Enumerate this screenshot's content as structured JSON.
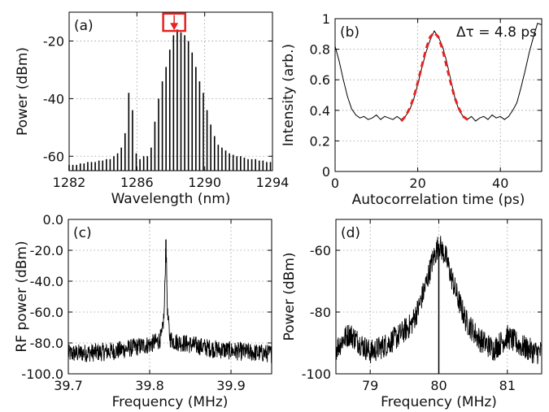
{
  "chart_data": [
    {
      "id": "a",
      "type": "line",
      "panel_label": "(a)",
      "xlabel": "Wavelength (nm)",
      "ylabel": "Power (dBm)",
      "xlim": [
        1282,
        1294
      ],
      "ylim": [
        -65,
        -10
      ],
      "xticks": [
        1282,
        1286,
        1290,
        1294
      ],
      "yticks": [
        -60,
        -40,
        -20
      ],
      "grid": true,
      "series": [
        {
          "style": "comb",
          "color": "#000000",
          "floor": -65,
          "x": [
            1282.0,
            1282.22,
            1282.44,
            1282.66,
            1282.88,
            1283.1,
            1283.32,
            1283.54,
            1283.76,
            1283.98,
            1284.2,
            1284.42,
            1284.64,
            1284.86,
            1285.08,
            1285.3,
            1285.52,
            1285.74,
            1285.96,
            1286.18,
            1286.4,
            1286.62,
            1286.84,
            1287.06,
            1287.28,
            1287.5,
            1287.72,
            1287.94,
            1288.16,
            1288.38,
            1288.6,
            1288.82,
            1289.04,
            1289.26,
            1289.48,
            1289.7,
            1289.92,
            1290.14,
            1290.36,
            1290.58,
            1290.8,
            1291.02,
            1291.24,
            1291.46,
            1291.68,
            1291.9,
            1292.12,
            1292.34,
            1292.56,
            1292.78,
            1293.0,
            1293.22,
            1293.44,
            1293.66,
            1293.88
          ],
          "y": [
            -63,
            -63,
            -63,
            -62.5,
            -62.5,
            -62,
            -62,
            -62,
            -61.5,
            -61.5,
            -61,
            -61,
            -60,
            -59,
            -57,
            -52,
            -38,
            -44,
            -59,
            -61,
            -60,
            -60,
            -57,
            -48,
            -40,
            -34,
            -29,
            -23,
            -18,
            -16,
            -17,
            -18,
            -20,
            -24,
            -29,
            -34,
            -38,
            -44,
            -49,
            -53,
            -56,
            -57,
            -58,
            -59,
            -59.5,
            -60,
            -60,
            -60.5,
            -61,
            -61,
            -61,
            -61.5,
            -61.5,
            -62,
            -62
          ]
        }
      ],
      "annotations": [
        {
          "type": "box_with_arrow",
          "color": "#e52222",
          "x_range": [
            1287.55,
            1288.85
          ],
          "y_range": [
            -16.5,
            -10.5
          ],
          "arrow_from": [
            1288.2,
            -11
          ],
          "arrow_to": [
            1288.2,
            -16
          ]
        }
      ]
    },
    {
      "id": "b",
      "type": "line",
      "panel_label": "(b)",
      "xlabel": "Autocorrelation time (ps)",
      "ylabel": "Intensity (arb.)",
      "xlim": [
        0,
        50
      ],
      "ylim": [
        0,
        1
      ],
      "xticks": [
        0,
        20,
        40
      ],
      "yticks": [
        0,
        0.2,
        0.4,
        0.6,
        0.8,
        1
      ],
      "grid": true,
      "annotation_text": "Δτ = 4.8 ps",
      "series": [
        {
          "style": "line",
          "color": "#000000",
          "x": [
            0,
            1,
            2,
            3,
            4,
            5,
            6,
            7,
            8,
            9,
            10,
            11,
            12,
            13,
            14,
            15,
            16,
            17,
            18,
            19,
            20,
            21,
            22,
            23,
            24,
            25,
            26,
            27,
            28,
            29,
            30,
            31,
            32,
            33,
            34,
            35,
            36,
            37,
            38,
            39,
            40,
            41,
            42,
            43,
            44,
            45,
            46,
            47,
            48,
            49,
            50
          ],
          "y": [
            0.82,
            0.72,
            0.6,
            0.49,
            0.41,
            0.37,
            0.35,
            0.36,
            0.34,
            0.35,
            0.37,
            0.34,
            0.36,
            0.35,
            0.34,
            0.36,
            0.34,
            0.36,
            0.4,
            0.47,
            0.57,
            0.68,
            0.78,
            0.86,
            0.92,
            0.88,
            0.82,
            0.72,
            0.6,
            0.48,
            0.4,
            0.36,
            0.34,
            0.36,
            0.33,
            0.35,
            0.36,
            0.34,
            0.37,
            0.35,
            0.36,
            0.34,
            0.36,
            0.4,
            0.45,
            0.55,
            0.66,
            0.78,
            0.88,
            0.97,
            0.96
          ]
        },
        {
          "style": "dashed",
          "color": "#e52222",
          "x": [
            16,
            17,
            18,
            19,
            20,
            21,
            22,
            23,
            24,
            25,
            26,
            27,
            28,
            29,
            30,
            31,
            32,
            33
          ],
          "y": [
            0.33,
            0.36,
            0.41,
            0.48,
            0.58,
            0.69,
            0.8,
            0.88,
            0.91,
            0.88,
            0.8,
            0.69,
            0.58,
            0.48,
            0.41,
            0.36,
            0.34,
            0.33
          ]
        }
      ]
    },
    {
      "id": "c",
      "type": "line",
      "panel_label": "(c)",
      "xlabel": "Frequency (MHz)",
      "ylabel": "RF power (dBm)",
      "xlim": [
        39.7,
        39.95
      ],
      "ylim": [
        -100,
        0
      ],
      "xticks": [
        39.7,
        39.8,
        39.9
      ],
      "yticks": [
        -100,
        -80,
        -60,
        -40,
        -20,
        0
      ],
      "grid": true,
      "series": [
        {
          "style": "noise",
          "color": "#000000",
          "x": [
            39.7,
            39.72,
            39.74,
            39.76,
            39.78,
            39.8,
            39.81,
            39.815,
            39.818,
            39.82,
            39.822,
            39.825,
            39.83,
            39.84,
            39.86,
            39.88,
            39.9,
            39.92,
            39.95
          ],
          "y": [
            -87,
            -86.5,
            -86,
            -85,
            -83,
            -81,
            -79,
            -76,
            -60,
            -13,
            -62,
            -77,
            -79,
            -80,
            -82,
            -84,
            -85,
            -86,
            -87
          ],
          "noise_amplitude": 6
        }
      ]
    },
    {
      "id": "d",
      "type": "line",
      "panel_label": "(d)",
      "xlabel": "Frequency (MHz)",
      "ylabel": "Power (dBm)",
      "xlim": [
        78.5,
        81.5
      ],
      "ylim": [
        -100,
        -50
      ],
      "xticks": [
        79,
        80,
        81
      ],
      "yticks": [
        -100,
        -80,
        -60
      ],
      "grid": true,
      "series": [
        {
          "style": "noise",
          "color": "#000000",
          "x": [
            78.5,
            78.6,
            78.7,
            78.8,
            79.0,
            79.2,
            79.4,
            79.6,
            79.7,
            79.8,
            79.9,
            80.0,
            80.1,
            80.2,
            80.3,
            80.4,
            80.6,
            80.8,
            80.9,
            81.0,
            81.2,
            81.4,
            81.5
          ],
          "y": [
            -92,
            -89,
            -87,
            -89,
            -93,
            -91,
            -88,
            -84,
            -79,
            -72,
            -64,
            -58,
            -62,
            -70,
            -77,
            -83,
            -89,
            -92,
            -90,
            -88,
            -91,
            -93,
            -93
          ],
          "noise_amplitude": 4
        }
      ]
    }
  ]
}
